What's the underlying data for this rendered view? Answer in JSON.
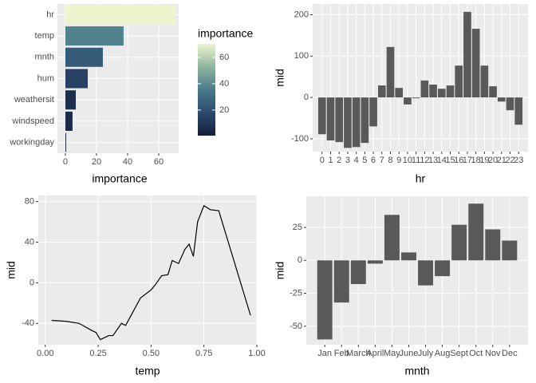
{
  "chart_data": [
    {
      "type": "bar",
      "orientation": "horizontal",
      "x_label": "importance",
      "categories": [
        "hr",
        "temp",
        "mnth",
        "hum",
        "weathersit",
        "windspeed",
        "workingday"
      ],
      "values": [
        70.3,
        37.4,
        24.1,
        14.4,
        6.7,
        4.6,
        0.5
      ],
      "xlim": [
        -5.1,
        72.8
      ],
      "xticks": [
        0,
        20,
        40,
        60
      ],
      "colorscale": [
        "#16203c",
        "#2b4a6e",
        "#4a7b8a",
        "#8fb5a0",
        "#eef4cc"
      ],
      "colorbar": {
        "title": "importance",
        "ticks": [
          20,
          40,
          60
        ]
      },
      "grid": true
    },
    {
      "type": "bar",
      "x_label": "hr",
      "y_label": "mid",
      "color": "#595959",
      "categories": [
        "0",
        "1",
        "2",
        "3",
        "4",
        "5",
        "6",
        "7",
        "8",
        "9",
        "10",
        "11",
        "12",
        "13",
        "14",
        "15",
        "16",
        "17",
        "18",
        "19",
        "20",
        "21",
        "22",
        "23"
      ],
      "values": [
        -89,
        -104,
        -108,
        -122,
        -120,
        -110,
        -70,
        29,
        122,
        23,
        -17,
        -2,
        41,
        31,
        21,
        29,
        77,
        207,
        166,
        77,
        27,
        -10,
        -31,
        -66
      ],
      "ylim": [
        -131,
        226
      ],
      "yticks": [
        -100,
        0,
        100,
        200
      ],
      "grid": true
    },
    {
      "type": "line",
      "x_label": "temp",
      "y_label": "mid",
      "color": "#000000",
      "x": [
        0.03,
        0.1,
        0.16,
        0.22,
        0.24,
        0.26,
        0.3,
        0.32,
        0.36,
        0.38,
        0.45,
        0.5,
        0.52,
        0.55,
        0.58,
        0.6,
        0.63,
        0.66,
        0.68,
        0.7,
        0.72,
        0.75,
        0.78,
        0.82,
        0.97
      ],
      "values": [
        -37,
        -38,
        -40,
        -47,
        -49,
        -56,
        -52,
        -52,
        -40,
        -42,
        -15,
        -7,
        -2,
        7,
        8,
        22,
        19,
        33,
        38,
        26,
        60,
        76,
        72,
        71,
        -32
      ],
      "xlim": [
        -0.033,
        1.0
      ],
      "xticks": [
        {
          "value": 0,
          "label": "0.00"
        },
        {
          "value": 0.25,
          "label": "0.25"
        },
        {
          "value": 0.5,
          "label": "0.50"
        },
        {
          "value": 0.75,
          "label": "0.75"
        },
        {
          "value": 1,
          "label": "1.00"
        }
      ],
      "ylim": [
        -61,
        86
      ],
      "yticks": [
        -40,
        0,
        40,
        80
      ],
      "grid": true
    },
    {
      "type": "bar",
      "x_label": "mnth",
      "y_label": "mid",
      "color": "#595959",
      "categories": [
        "Jan",
        "Feb",
        "March",
        "April",
        "May",
        "June",
        "July",
        "Aug",
        "Sept",
        "Oct",
        "Nov",
        "Dec"
      ],
      "values": [
        -60,
        -32,
        -18,
        -2.5,
        34.5,
        6,
        -19,
        -12,
        27,
        43,
        23.5,
        15
      ],
      "ylim": [
        -64,
        48.6
      ],
      "yticks": [
        -50,
        -25,
        0,
        25
      ],
      "grid": true
    }
  ]
}
